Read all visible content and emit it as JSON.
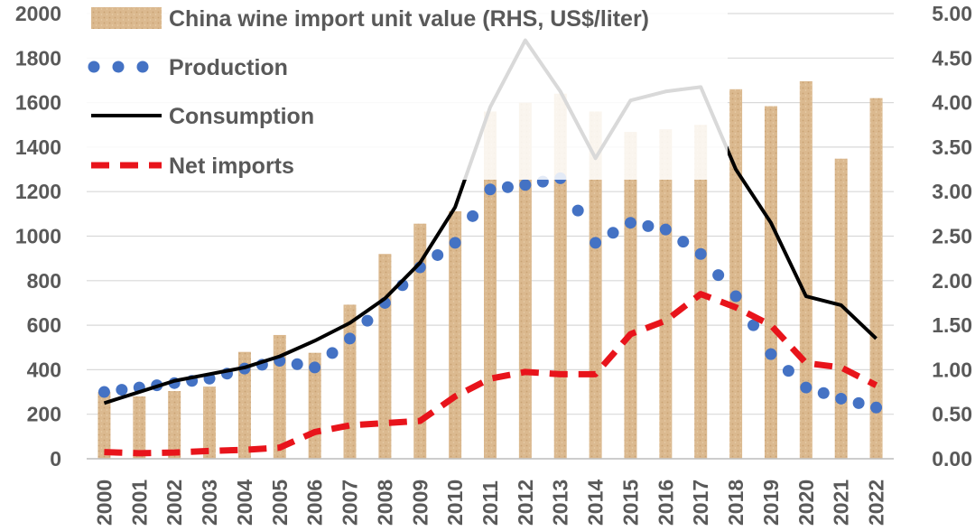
{
  "chart_data": {
    "type": "bar+line",
    "categories": [
      "2000",
      "2001",
      "2002",
      "2003",
      "2004",
      "2005",
      "2006",
      "2007",
      "2008",
      "2009",
      "2010",
      "2011",
      "2012",
      "2013",
      "2014",
      "2015",
      "2016",
      "2017",
      "2018",
      "2019",
      "2020",
      "2021",
      "2022"
    ],
    "left_axis": {
      "ylim": [
        0,
        2000
      ],
      "ticks": [
        "0",
        "200",
        "400",
        "600",
        "800",
        "1000",
        "1200",
        "1400",
        "1600",
        "1800",
        "2000"
      ]
    },
    "right_axis": {
      "ylim": [
        0,
        5
      ],
      "ticks": [
        "0.00",
        "0.50",
        "1.00",
        "1.50",
        "2.00",
        "2.50",
        "3.00",
        "3.50",
        "4.00",
        "4.50",
        "5.00"
      ]
    },
    "grid": true,
    "legend_position": "top-left",
    "series": [
      {
        "name": "China wine import unit value (RHS, US$/liter)",
        "kind": "bar",
        "axis": "right",
        "color": "#d9b68a",
        "values": [
          0.75,
          0.7,
          0.76,
          0.81,
          1.2,
          1.39,
          1.19,
          1.73,
          2.3,
          2.64,
          2.78,
          3.9,
          4.0,
          4.1,
          3.9,
          3.67,
          3.7,
          3.75,
          4.15,
          3.96,
          4.24,
          3.37,
          4.05
        ]
      },
      {
        "name": "Production",
        "kind": "dotted-line",
        "axis": "left",
        "color": "#4472c4",
        "values": [
          300,
          320,
          340,
          360,
          405,
          440,
          410,
          540,
          700,
          860,
          970,
          1210,
          1230,
          1260,
          970,
          1060,
          1030,
          920,
          730,
          470,
          320,
          270,
          230
        ]
      },
      {
        "name": "Consumption",
        "kind": "line",
        "axis": "left",
        "color": "#000000",
        "values": [
          250,
          300,
          350,
          380,
          410,
          460,
          530,
          610,
          720,
          880,
          1130,
          1580,
          1880,
          1650,
          1350,
          1610,
          1650,
          1670,
          1300,
          1060,
          730,
          690,
          540
        ]
      },
      {
        "name": "Net imports",
        "kind": "dashed-line",
        "axis": "left",
        "color": "#e8141b",
        "values": [
          30,
          25,
          28,
          35,
          40,
          50,
          120,
          150,
          160,
          170,
          280,
          360,
          390,
          380,
          380,
          560,
          620,
          740,
          680,
          600,
          430,
          410,
          330
        ]
      }
    ]
  }
}
